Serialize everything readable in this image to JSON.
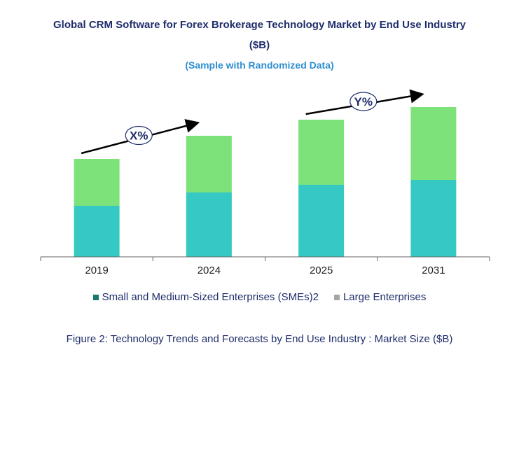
{
  "chart_data": {
    "type": "bar",
    "stacked": true,
    "title_line1": "Global CRM Software for Forex Brokerage Technology Market by End Use Industry",
    "title_line2": "($B)",
    "subtitle": "(Sample with Randomized Data)",
    "categories": [
      "2019",
      "2024",
      "2025",
      "2031"
    ],
    "series": [
      {
        "name": "Small and Medium-Sized Enterprises (SMEs)2",
        "values": [
          73,
          92,
          103,
          110
        ],
        "color": "#36c9c3"
      },
      {
        "name": "Large Enterprises",
        "values": [
          67,
          81,
          93,
          104
        ],
        "color": "#7de27a"
      }
    ],
    "ylim": [
      0,
      240
    ],
    "annotations": [
      {
        "label": "X%",
        "from": "2019",
        "to": "2024"
      },
      {
        "label": "Y%",
        "from": "2025",
        "to": "2031"
      }
    ],
    "legend_swatch_colors": [
      "#177a6e",
      "#a6a6a6"
    ],
    "caption": "Figure 2: Technology  Trends  and Forecasts by End Use Industry   : Market Size ($B)"
  }
}
